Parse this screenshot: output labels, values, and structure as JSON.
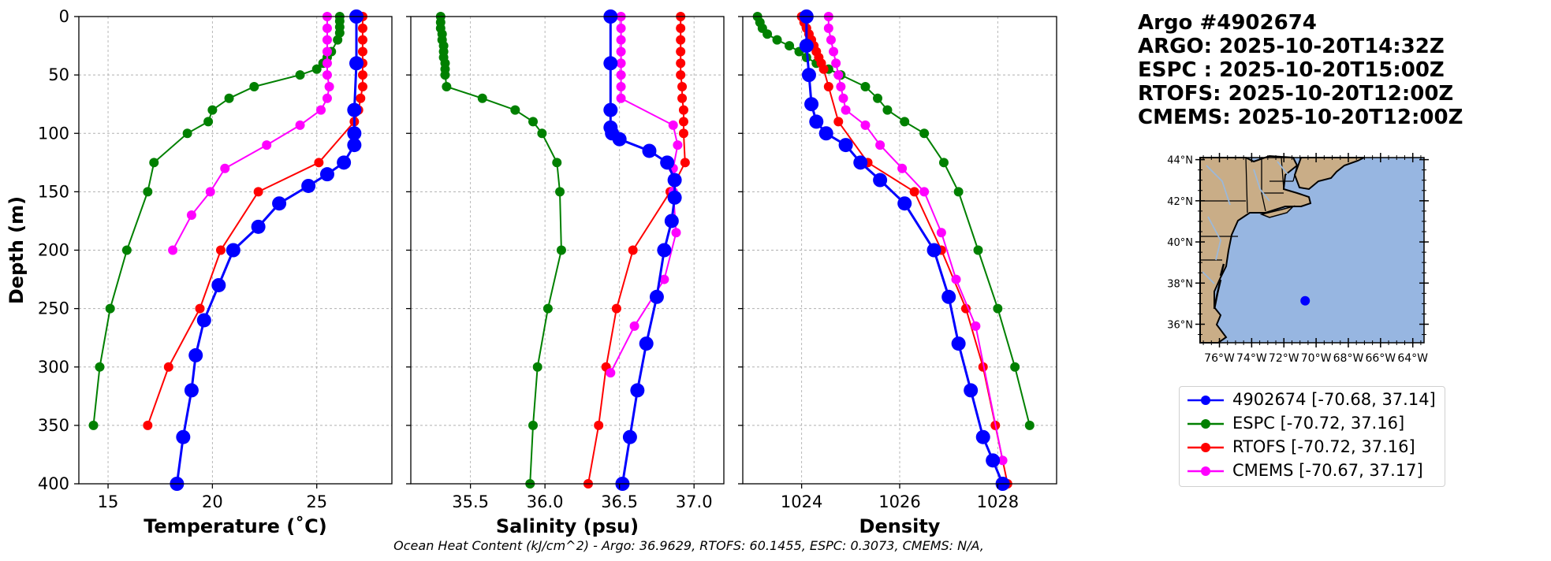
{
  "colors": {
    "argo": "#0000ff",
    "espc": "#008000",
    "rtofs": "#ff0000",
    "cmems": "#ff00ff",
    "ocean": "#97b6e1",
    "land": "#c9ad87",
    "river": "#9bb8d9",
    "grid": "#b0b0b0"
  },
  "info": {
    "title": "Argo #4902674",
    "argo_time": "ARGO: 2025-10-20T14:32Z",
    "espc_time": "ESPC : 2025-10-20T15:00Z",
    "rtofs_time": "RTOFS: 2025-10-20T12:00Z",
    "cmems_time": "CMEMS: 2025-10-20T12:00Z"
  },
  "caption": "Ocean Heat Content (kJ/cm^2) - Argo: 36.9629,  RTOFS: 60.1455,  ESPC: 0.3073,  CMEMS: N/A,",
  "legend": [
    {
      "key": "argo",
      "label": "4902674 [-70.68, 37.14]"
    },
    {
      "key": "espc",
      "label": "ESPC [-70.72, 37.16]"
    },
    {
      "key": "rtofs",
      "label": "RTOFS [-70.72, 37.16]"
    },
    {
      "key": "cmems",
      "label": "CMEMS [-70.67, 37.17]"
    }
  ],
  "map": {
    "lat_ticks": [
      44,
      42,
      40,
      38,
      36
    ],
    "lat_labels": [
      "44°N",
      "42°N",
      "40°N",
      "38°N",
      "36°N"
    ],
    "lon_ticks": [
      -76,
      -74,
      -72,
      -70,
      -68,
      -66,
      -64
    ],
    "lon_labels": [
      "76°W",
      "74°W",
      "72°W",
      "70°W",
      "68°W",
      "66°W",
      "64°W"
    ],
    "lon_range": [
      -77.2,
      -63.3
    ],
    "lat_range": [
      35.1,
      44.1
    ],
    "float_position": [
      -70.68,
      37.14
    ]
  },
  "chart_data": [
    {
      "type": "line",
      "xlabel": "Temperature (˚C)",
      "ylabel": "Depth (m)",
      "xlim": [
        13.6,
        28.6
      ],
      "ylim": [
        400,
        0
      ],
      "xticks": [
        15,
        20,
        25
      ],
      "xtick_labels": [
        "15",
        "20",
        "25"
      ],
      "yticks": [
        0,
        50,
        100,
        150,
        200,
        250,
        300,
        350,
        400
      ],
      "ytick_labels": [
        "0",
        "50",
        "100",
        "150",
        "200",
        "250",
        "300",
        "350",
        "400"
      ],
      "series": [
        {
          "key": "espc",
          "name": "ESPC",
          "x": [
            26.1,
            26.1,
            26.1,
            26.1,
            26.0,
            25.7,
            25.5,
            25.3,
            25.0,
            24.2,
            22.0,
            20.8,
            20.0,
            19.8,
            18.8,
            17.2,
            16.9,
            15.9,
            15.1,
            14.6,
            14.3
          ],
          "y": [
            0,
            4,
            9,
            14,
            20,
            30,
            35,
            40,
            45,
            50,
            60,
            70,
            80,
            90,
            100,
            125,
            150,
            200,
            250,
            300,
            350
          ]
        },
        {
          "key": "rtofs",
          "name": "RTOFS",
          "x": [
            27.2,
            27.2,
            27.2,
            27.2,
            27.2,
            27.2,
            27.2,
            27.1,
            27.0,
            26.8,
            25.1,
            22.2,
            20.4,
            19.4,
            17.9,
            16.9
          ],
          "y": [
            0,
            10,
            20,
            30,
            40,
            50,
            60,
            70,
            80,
            90,
            125,
            150,
            200,
            250,
            300,
            350
          ]
        },
        {
          "key": "cmems",
          "name": "CMEMS",
          "x": [
            25.5,
            25.5,
            25.5,
            25.5,
            25.5,
            25.5,
            25.6,
            25.5,
            25.2,
            24.2,
            22.6,
            20.6,
            19.9,
            19.0,
            18.1
          ],
          "y": [
            0,
            10,
            20,
            30,
            40,
            50,
            60,
            70,
            80,
            93,
            110,
            130,
            150,
            170,
            200
          ]
        },
        {
          "key": "argo",
          "name": "Argo 4902674",
          "x": [
            26.9,
            26.9,
            26.8,
            26.8,
            26.8,
            26.3,
            25.5,
            24.6,
            23.2,
            22.2,
            21.0,
            20.3,
            19.6,
            19.2,
            19.0,
            18.6,
            18.3
          ],
          "y": [
            0,
            40,
            80,
            100,
            110,
            125,
            135,
            145,
            160,
            180,
            200,
            230,
            260,
            290,
            320,
            360,
            400
          ]
        }
      ]
    },
    {
      "type": "line",
      "xlabel": "Salinity (psu)",
      "xlim": [
        35.1,
        37.2
      ],
      "ylim": [
        400,
        0
      ],
      "xticks": [
        35.5,
        36.0,
        36.5,
        37.0
      ],
      "xtick_labels": [
        "35.5",
        "36.0",
        "36.5",
        "37.0"
      ],
      "yticks": [
        0,
        50,
        100,
        150,
        200,
        250,
        300,
        350,
        400
      ],
      "series": [
        {
          "key": "espc",
          "name": "ESPC",
          "x": [
            35.3,
            35.3,
            35.3,
            35.31,
            35.31,
            35.32,
            35.32,
            35.32,
            35.33,
            35.33,
            35.33,
            35.34,
            35.58,
            35.8,
            35.92,
            35.98,
            36.08,
            36.1,
            36.11,
            36.02,
            35.95,
            35.92,
            35.9
          ],
          "y": [
            0,
            5,
            10,
            15,
            20,
            25,
            30,
            35,
            40,
            45,
            50,
            60,
            70,
            80,
            90,
            100,
            125,
            150,
            200,
            250,
            300,
            350,
            400
          ]
        },
        {
          "key": "rtofs",
          "name": "RTOFS",
          "x": [
            36.91,
            36.91,
            36.91,
            36.91,
            36.91,
            36.91,
            36.92,
            36.92,
            36.93,
            36.93,
            36.93,
            36.94,
            36.84,
            36.59,
            36.48,
            36.41,
            36.36,
            36.29
          ],
          "y": [
            0,
            10,
            20,
            30,
            40,
            50,
            60,
            70,
            80,
            90,
            100,
            125,
            150,
            200,
            250,
            300,
            350,
            400
          ]
        },
        {
          "key": "cmems",
          "name": "CMEMS",
          "x": [
            36.51,
            36.51,
            36.51,
            36.51,
            36.51,
            36.51,
            36.51,
            36.51,
            36.86,
            36.89,
            36.86,
            36.86,
            36.88,
            36.8,
            36.6,
            36.44
          ],
          "y": [
            0,
            10,
            20,
            30,
            40,
            50,
            60,
            70,
            93,
            110,
            130,
            150,
            185,
            225,
            265,
            305
          ]
        },
        {
          "key": "argo",
          "name": "Argo 4902674",
          "x": [
            36.44,
            36.44,
            36.44,
            36.44,
            36.45,
            36.5,
            36.7,
            36.82,
            36.87,
            36.87,
            36.85,
            36.8,
            36.75,
            36.68,
            36.62,
            36.57,
            36.52
          ],
          "y": [
            0,
            40,
            80,
            95,
            100,
            105,
            115,
            125,
            140,
            155,
            175,
            200,
            240,
            280,
            320,
            360,
            400
          ]
        }
      ]
    },
    {
      "type": "line",
      "xlabel": "Density",
      "xlim": [
        1022.8,
        1029.2
      ],
      "ylim": [
        400,
        0
      ],
      "xticks": [
        1024,
        1026,
        1028
      ],
      "xtick_labels": [
        "1024",
        "1026",
        "1028"
      ],
      "yticks": [
        0,
        50,
        100,
        150,
        200,
        250,
        300,
        350,
        400
      ],
      "series": [
        {
          "key": "espc",
          "name": "ESPC",
          "x": [
            1023.1,
            1023.15,
            1023.2,
            1023.3,
            1023.5,
            1023.75,
            1023.95,
            1024.1,
            1024.3,
            1024.55,
            1024.8,
            1025.3,
            1025.55,
            1025.75,
            1026.1,
            1026.5,
            1026.9,
            1027.2,
            1027.6,
            1028.0,
            1028.35,
            1028.65
          ],
          "y": [
            0,
            5,
            10,
            15,
            20,
            25,
            30,
            35,
            40,
            45,
            50,
            60,
            70,
            80,
            90,
            100,
            125,
            150,
            200,
            250,
            300,
            350
          ]
        },
        {
          "key": "rtofs",
          "name": "RTOFS",
          "x": [
            1024.0,
            1024.05,
            1024.1,
            1024.15,
            1024.2,
            1024.25,
            1024.3,
            1024.35,
            1024.4,
            1024.45,
            1024.55,
            1024.75,
            1025.35,
            1026.3,
            1026.85,
            1027.35,
            1027.7,
            1027.95,
            1028.2
          ],
          "y": [
            0,
            5,
            10,
            15,
            20,
            25,
            30,
            35,
            40,
            45,
            60,
            90,
            125,
            150,
            200,
            250,
            300,
            350,
            400
          ]
        },
        {
          "key": "cmems",
          "name": "CMEMS",
          "x": [
            1024.55,
            1024.55,
            1024.6,
            1024.65,
            1024.7,
            1024.75,
            1024.8,
            1024.85,
            1024.9,
            1025.3,
            1025.6,
            1026.05,
            1026.5,
            1026.85,
            1027.15,
            1027.55,
            1028.1
          ],
          "y": [
            0,
            10,
            20,
            30,
            40,
            50,
            60,
            70,
            80,
            93,
            110,
            130,
            150,
            185,
            225,
            265,
            380
          ]
        },
        {
          "key": "argo",
          "name": "Argo 4902674",
          "x": [
            1024.1,
            1024.1,
            1024.15,
            1024.2,
            1024.3,
            1024.5,
            1024.9,
            1025.2,
            1025.6,
            1026.1,
            1026.7,
            1027.0,
            1027.2,
            1027.45,
            1027.7,
            1027.9,
            1028.1
          ],
          "y": [
            0,
            25,
            50,
            75,
            90,
            100,
            110,
            125,
            140,
            160,
            200,
            240,
            280,
            320,
            360,
            380,
            400
          ]
        }
      ]
    }
  ]
}
